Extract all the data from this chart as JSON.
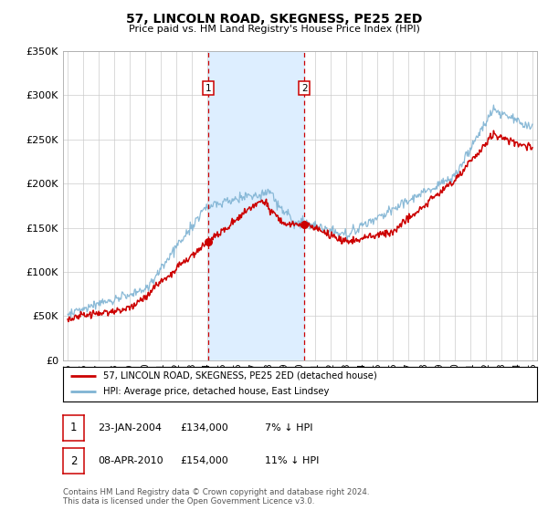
{
  "title": "57, LINCOLN ROAD, SKEGNESS, PE25 2ED",
  "subtitle": "Price paid vs. HM Land Registry's House Price Index (HPI)",
  "property_label": "57, LINCOLN ROAD, SKEGNESS, PE25 2ED (detached house)",
  "hpi_label": "HPI: Average price, detached house, East Lindsey",
  "transaction1_date": "23-JAN-2004",
  "transaction1_price": "£134,000",
  "transaction1_hpi": "7% ↓ HPI",
  "transaction1_year": 2004.06,
  "transaction1_value": 134000,
  "transaction2_date": "08-APR-2010",
  "transaction2_price": "£154,000",
  "transaction2_hpi": "11% ↓ HPI",
  "transaction2_year": 2010.27,
  "transaction2_value": 154000,
  "property_color": "#cc0000",
  "hpi_color": "#7fb3d3",
  "shade_color": "#ddeeff",
  "grid_color": "#cccccc",
  "background_color": "#ffffff",
  "ylim": [
    0,
    350000
  ],
  "yticks": [
    0,
    50000,
    100000,
    150000,
    200000,
    250000,
    300000,
    350000
  ],
  "xlim_start": 1994.7,
  "xlim_end": 2025.3,
  "footnote1": "Contains HM Land Registry data © Crown copyright and database right 2024.",
  "footnote2": "This data is licensed under the Open Government Licence v3.0."
}
